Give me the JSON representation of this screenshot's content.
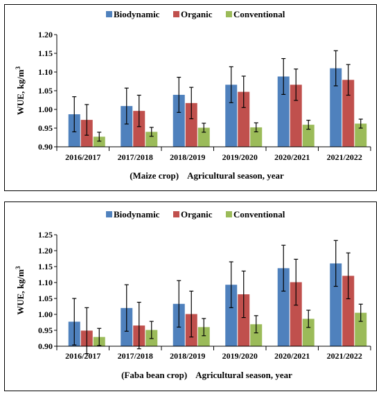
{
  "chart_data": [
    {
      "type": "bar",
      "ylabel": "WUE, kg/m",
      "ylabel_superscript": "3",
      "xlabel_note": "(Maize crop)",
      "xlabel": "Agricultural season, year",
      "categories": [
        "2016/2017",
        "2017/2018",
        "2018/2019",
        "2019/2020",
        "2020/2021",
        "2021/2022"
      ],
      "ylim": [
        0.9,
        1.2
      ],
      "yticks": [
        "0.90",
        "0.95",
        "1.00",
        "1.05",
        "1.10",
        "1.15",
        "1.20"
      ],
      "legend_position": "top",
      "series": [
        {
          "name": "Biodynamic",
          "color": "#4f81bd",
          "values": [
            0.987,
            1.009,
            1.039,
            1.066,
            1.088,
            1.11
          ],
          "errors": [
            0.047,
            0.048,
            0.047,
            0.048,
            0.048,
            0.047
          ]
        },
        {
          "name": "Organic",
          "color": "#c0504d",
          "values": [
            0.972,
            0.996,
            1.017,
            1.047,
            1.066,
            1.079
          ],
          "errors": [
            0.041,
            0.042,
            0.042,
            0.042,
            0.042,
            0.041
          ]
        },
        {
          "name": "Conventional",
          "color": "#9bbb59",
          "values": [
            0.927,
            0.94,
            0.951,
            0.952,
            0.959,
            0.962
          ],
          "errors": [
            0.012,
            0.012,
            0.012,
            0.012,
            0.012,
            0.012
          ]
        }
      ]
    },
    {
      "type": "bar",
      "ylabel": "WUE, kg/m",
      "ylabel_superscript": "3",
      "xlabel_note": "(Faba bean crop)",
      "xlabel": "Agricultural season, year",
      "categories": [
        "2016/2017",
        "2017/2018",
        "2018/2019",
        "2019/2020",
        "2020/2021",
        "2021/2022"
      ],
      "ylim": [
        0.9,
        1.25
      ],
      "yticks": [
        "0.90",
        "0.95",
        "1.00",
        "1.05",
        "1.10",
        "1.15",
        "1.20",
        "1.25"
      ],
      "legend_position": "top",
      "series": [
        {
          "name": "Biodynamic",
          "color": "#4f81bd",
          "values": [
            0.977,
            1.02,
            1.033,
            1.093,
            1.145,
            1.16
          ],
          "errors": [
            0.073,
            0.073,
            0.073,
            0.072,
            0.072,
            0.072
          ]
        },
        {
          "name": "Organic",
          "color": "#c0504d",
          "values": [
            0.949,
            0.965,
            1.001,
            1.063,
            1.101,
            1.121
          ],
          "errors": [
            0.072,
            0.073,
            0.072,
            0.073,
            0.072,
            0.072
          ]
        },
        {
          "name": "Conventional",
          "color": "#9bbb59",
          "values": [
            0.929,
            0.951,
            0.96,
            0.969,
            0.986,
            1.005
          ],
          "errors": [
            0.027,
            0.027,
            0.027,
            0.027,
            0.027,
            0.027
          ]
        }
      ]
    }
  ]
}
